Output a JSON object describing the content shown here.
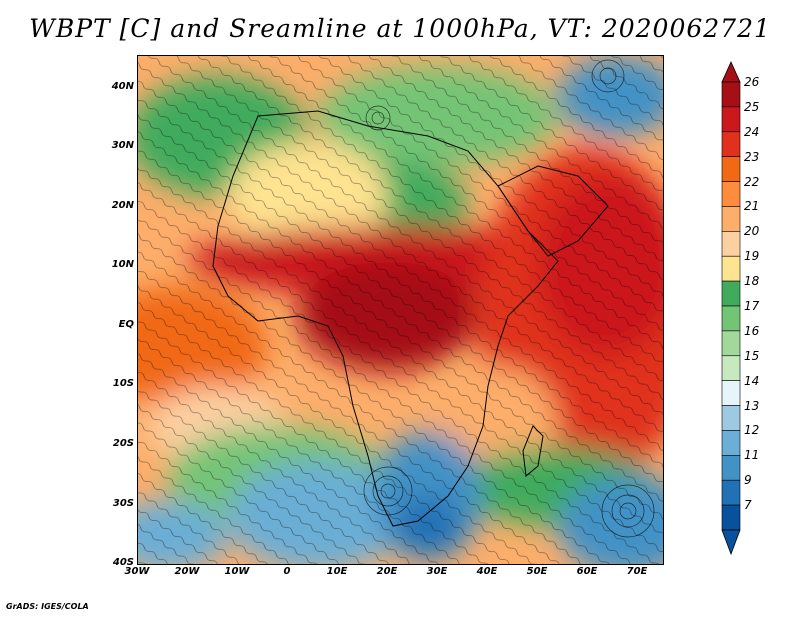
{
  "title": "WBPT [C] and Sreamline at 1000hPa, VT: 2020062721",
  "footer": "GrADS: IGES/COLA",
  "lat_labels": [
    "40N",
    "30N",
    "20N",
    "10N",
    "EQ",
    "10S",
    "20S",
    "30S",
    "40S"
  ],
  "lon_labels": [
    "30W",
    "20W",
    "10W",
    "0",
    "10E",
    "20E",
    "30E",
    "40E",
    "50E",
    "60E",
    "70E"
  ],
  "colorbar": {
    "labels": [
      "26",
      "25",
      "24",
      "23",
      "22",
      "21",
      "20",
      "19",
      "18",
      "17",
      "16",
      "15",
      "14",
      "13",
      "12",
      "11",
      "9",
      "7"
    ],
    "colors": [
      "#a50f15",
      "#cb181d",
      "#e0301e",
      "#f16913",
      "#fd8d3c",
      "#fdae6b",
      "#fdd0a2",
      "#fee391",
      "#41ab5d",
      "#74c476",
      "#a1d99b",
      "#c7e9c0",
      "#e5f5f9",
      "#9ecae1",
      "#6baed6",
      "#4292c6",
      "#2171b5",
      "#08519c"
    ]
  },
  "chart_data": {
    "type": "heatmap",
    "variable": "WBPT [C]",
    "level": "1000hPa",
    "valid_time": "2020062721",
    "x_range": [
      -30,
      75
    ],
    "y_range": [
      -40,
      45
    ],
    "colorbar_range": [
      7,
      26
    ]
  }
}
